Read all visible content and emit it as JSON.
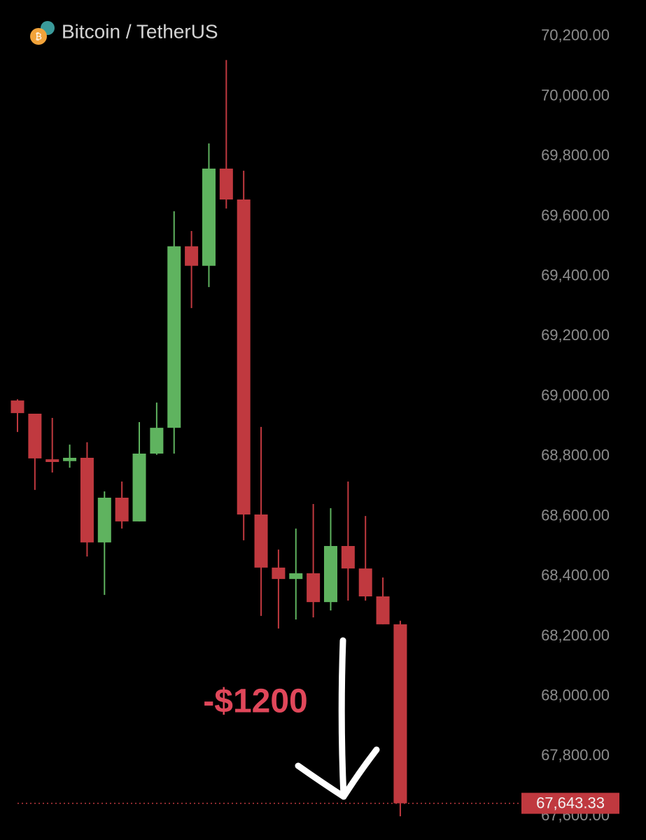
{
  "chart_data": {
    "type": "candlestick",
    "title": "Bitcoin / TetherUS",
    "annotation": "-$1200",
    "up_color": "#5fb35f",
    "down_color": "#c0393f",
    "annotation_color": "#e0475a",
    "ylim": [
      67521,
      70321
    ],
    "yticks": [
      {
        "value": 70200,
        "label": "70,200.00"
      },
      {
        "value": 70000,
        "label": "70,000.00"
      },
      {
        "value": 69800,
        "label": "69,800.00"
      },
      {
        "value": 69600,
        "label": "69,600.00"
      },
      {
        "value": 69400,
        "label": "69,400.00"
      },
      {
        "value": 69200,
        "label": "69,200.00"
      },
      {
        "value": 69000,
        "label": "69,000.00"
      },
      {
        "value": 68800,
        "label": "68,800.00"
      },
      {
        "value": 68600,
        "label": "68,600.00"
      },
      {
        "value": 68400,
        "label": "68,400.00"
      },
      {
        "value": 68200,
        "label": "68,200.00"
      },
      {
        "value": 68000,
        "label": "68,000.00"
      },
      {
        "value": 67800,
        "label": "67,800.00"
      },
      {
        "value": 67600,
        "label": "67,600.00"
      }
    ],
    "last_price": {
      "value": 67643.33,
      "label": "67,643.33"
    },
    "open": [
      68986,
      68942,
      68790,
      68784,
      68795,
      68513,
      68662,
      68583,
      68809,
      68895,
      69500,
      69435,
      69759,
      69656,
      68606,
      68429,
      68391,
      68410,
      68314,
      68501,
      68426,
      68333,
      68240
    ],
    "high": [
      68990,
      68942,
      68928,
      68839,
      68847,
      68683,
      68716,
      68914,
      68979,
      69617,
      69551,
      69843,
      70121,
      69752,
      68898,
      68489,
      68559,
      68641,
      68627,
      68716,
      68601,
      68396,
      68252
    ],
    "low": [
      68881,
      68688,
      68746,
      68762,
      68466,
      68338,
      68559,
      68583,
      68805,
      68809,
      69294,
      69364,
      69626,
      68520,
      68268,
      68226,
      68256,
      68263,
      68286,
      68319,
      68319,
      68240,
      67600
    ],
    "close": [
      68944,
      68793,
      68781,
      68795,
      68513,
      68662,
      68583,
      68809,
      68895,
      69500,
      69435,
      69759,
      69656,
      68606,
      68429,
      68391,
      68410,
      68314,
      68501,
      68426,
      68333,
      68240,
      67643.33
    ]
  }
}
